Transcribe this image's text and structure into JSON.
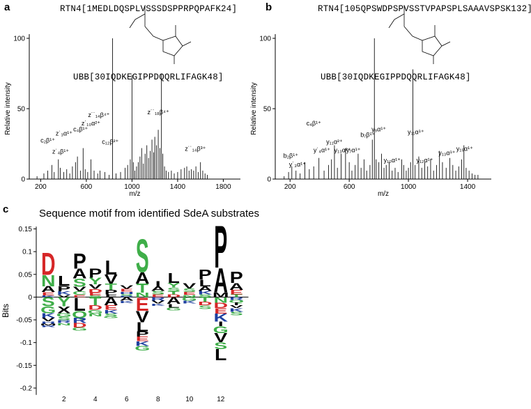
{
  "panels": {
    "a": "a",
    "b": "b",
    "c": "c"
  },
  "chart_data": [
    {
      "panel": "a",
      "type": "bar",
      "sequence_top": "RTN4[1MEDLDQSPLVSSSDSPPRPQPAFK24]",
      "sequence_bottom": "UBB[30IQDKEGIPPDQQRLIFAGK48]",
      "xlabel": "m/z",
      "ylabel": "Relative intensity",
      "xlim": [
        100,
        1950
      ],
      "ylim": [
        0,
        100
      ],
      "xticks": [
        200,
        600,
        1000,
        1400,
        1800
      ],
      "yticks": [
        0,
        50,
        100
      ],
      "peaks": [
        [
          168,
          2
        ],
        [
          228,
          4
        ],
        [
          262,
          6
        ],
        [
          298,
          10
        ],
        [
          318,
          5
        ],
        [
          355,
          14
        ],
        [
          372,
          8
        ],
        [
          402,
          5
        ],
        [
          428,
          7
        ],
        [
          455,
          4
        ],
        [
          478,
          9
        ],
        [
          505,
          12
        ],
        [
          522,
          16
        ],
        [
          548,
          6
        ],
        [
          572,
          22
        ],
        [
          590,
          7
        ],
        [
          612,
          5
        ],
        [
          640,
          14
        ],
        [
          668,
          6
        ],
        [
          700,
          4
        ],
        [
          720,
          6
        ],
        [
          762,
          5
        ],
        [
          800,
          3
        ],
        [
          830,
          100
        ],
        [
          860,
          4
        ],
        [
          900,
          5
        ],
        [
          940,
          8
        ],
        [
          962,
          10
        ],
        [
          985,
          14
        ],
        [
          1000,
          74
        ],
        [
          1012,
          12
        ],
        [
          1025,
          6
        ],
        [
          1040,
          9
        ],
        [
          1055,
          12
        ],
        [
          1070,
          16
        ],
        [
          1085,
          22
        ],
        [
          1100,
          11
        ],
        [
          1115,
          18
        ],
        [
          1130,
          24
        ],
        [
          1145,
          15
        ],
        [
          1160,
          20
        ],
        [
          1175,
          28
        ],
        [
          1190,
          19
        ],
        [
          1200,
          30
        ],
        [
          1215,
          24
        ],
        [
          1230,
          35
        ],
        [
          1245,
          22
        ],
        [
          1258,
          75
        ],
        [
          1270,
          18
        ],
        [
          1285,
          9
        ],
        [
          1300,
          6
        ],
        [
          1320,
          5
        ],
        [
          1345,
          6
        ],
        [
          1370,
          4
        ],
        [
          1400,
          5
        ],
        [
          1430,
          7
        ],
        [
          1460,
          8
        ],
        [
          1480,
          9
        ],
        [
          1500,
          6
        ],
        [
          1520,
          7
        ],
        [
          1540,
          6
        ],
        [
          1560,
          9
        ],
        [
          1580,
          5
        ],
        [
          1600,
          12
        ],
        [
          1620,
          6
        ],
        [
          1640,
          4
        ],
        [
          1660,
          3
        ]
      ],
      "annotations": [
        {
          "text": "c₂β¹⁺",
          "x": 262,
          "y": 26
        },
        {
          "text": "z˙₄β¹⁺",
          "x": 375,
          "y": 18
        },
        {
          "text": "z˙₃α¹⁺",
          "x": 405,
          "y": 31
        },
        {
          "text": "c₄β¹⁺",
          "x": 550,
          "y": 34
        },
        {
          "text": "z˙₁₀α²⁺",
          "x": 640,
          "y": 38
        },
        {
          "text": "z˙˙₁₄β⁴⁺",
          "x": 710,
          "y": 44
        },
        {
          "text": "c₁₂β²⁺",
          "x": 810,
          "y": 25
        },
        {
          "text": "z˙˙₁₈β⁴⁺",
          "x": 1230,
          "y": 46
        },
        {
          "text": "z˙˙₁₄β³⁺",
          "x": 1555,
          "y": 20
        }
      ]
    },
    {
      "panel": "b",
      "type": "bar",
      "sequence_top": "RTN4[105QPSWDPSPVSSTVPAPSPLSAAAVSPSK132]",
      "sequence_bottom": "UBB[30IQDKEGIPPDQQRLIFAGK48]",
      "xlabel": "m/z",
      "ylabel": "Relative intensity",
      "xlim": [
        100,
        1560
      ],
      "ylim": [
        0,
        100
      ],
      "xticks": [
        200,
        600,
        1000,
        1400
      ],
      "yticks": [
        0,
        50,
        100
      ],
      "peaks": [
        [
          160,
          2
        ],
        [
          190,
          5
        ],
        [
          212,
          9
        ],
        [
          240,
          6
        ],
        [
          268,
          4
        ],
        [
          300,
          12
        ],
        [
          330,
          7
        ],
        [
          360,
          9
        ],
        [
          395,
          15
        ],
        [
          430,
          6
        ],
        [
          460,
          10
        ],
        [
          480,
          14
        ],
        [
          500,
          24
        ],
        [
          520,
          8
        ],
        [
          545,
          18
        ],
        [
          575,
          22
        ],
        [
          600,
          12
        ],
        [
          618,
          6
        ],
        [
          640,
          10
        ],
        [
          660,
          18
        ],
        [
          680,
          8
        ],
        [
          700,
          14
        ],
        [
          718,
          6
        ],
        [
          740,
          10
        ],
        [
          756,
          28
        ],
        [
          770,
          100
        ],
        [
          782,
          14
        ],
        [
          800,
          12
        ],
        [
          818,
          18
        ],
        [
          835,
          8
        ],
        [
          850,
          10
        ],
        [
          870,
          12
        ],
        [
          890,
          6
        ],
        [
          910,
          8
        ],
        [
          930,
          5
        ],
        [
          955,
          14
        ],
        [
          968,
          10
        ],
        [
          985,
          6
        ],
        [
          1000,
          8
        ],
        [
          1015,
          12
        ],
        [
          1030,
          78
        ],
        [
          1045,
          10
        ],
        [
          1070,
          16
        ],
        [
          1090,
          8
        ],
        [
          1110,
          12
        ],
        [
          1130,
          9
        ],
        [
          1150,
          14
        ],
        [
          1170,
          6
        ],
        [
          1190,
          10
        ],
        [
          1210,
          20
        ],
        [
          1230,
          12
        ],
        [
          1255,
          8
        ],
        [
          1280,
          15
        ],
        [
          1300,
          10
        ],
        [
          1320,
          6
        ],
        [
          1340,
          9
        ],
        [
          1360,
          14
        ],
        [
          1375,
          24
        ],
        [
          1390,
          8
        ],
        [
          1410,
          6
        ],
        [
          1430,
          4
        ],
        [
          1450,
          3
        ],
        [
          1470,
          3
        ]
      ],
      "annotations": [
        {
          "text": "b₂β¹⁺",
          "x": 205,
          "y": 15
        },
        {
          "text": "y˙₃α¹⁺",
          "x": 250,
          "y": 9
        },
        {
          "text": "c₄β¹⁺",
          "x": 360,
          "y": 38
        },
        {
          "text": "y˙₄α¹⁺",
          "x": 415,
          "y": 19
        },
        {
          "text": "y₁₁α²⁺",
          "x": 500,
          "y": 25
        },
        {
          "text": "y₁₃α²⁺",
          "x": 555,
          "y": 19
        },
        {
          "text": "y₇α¹⁺",
          "x": 628,
          "y": 19
        },
        {
          "text": "b₇β¹⁺",
          "x": 725,
          "y": 30
        },
        {
          "text": "y₉α¹⁺",
          "x": 800,
          "y": 34
        },
        {
          "text": "y₁₀α¹⁺",
          "x": 890,
          "y": 12
        },
        {
          "text": "y₁₁α¹⁺",
          "x": 1050,
          "y": 32
        },
        {
          "text": "y₁₂α¹⁺",
          "x": 1110,
          "y": 12
        },
        {
          "text": "y₁₃α¹⁺",
          "x": 1260,
          "y": 17
        },
        {
          "text": "y₁₅α¹⁺",
          "x": 1380,
          "y": 20
        }
      ]
    },
    {
      "panel": "c",
      "type": "sequence-logo",
      "title": "Sequence motif from identified SdeA substrates",
      "ylabel": "Bits",
      "ylim": [
        -0.22,
        0.16
      ],
      "yticks": [
        0.15,
        0.1,
        0.05,
        0,
        -0.05,
        -0.1,
        -0.15,
        -0.2
      ],
      "xticks": [
        2,
        4,
        6,
        8,
        10,
        12
      ],
      "positions": [
        {
          "pos": 1,
          "up": [
            [
              "D",
              0.05
            ],
            [
              "N",
              0.025
            ],
            [
              "A",
              0.013
            ],
            [
              "E",
              0.007
            ],
            [
              "K",
              0.004
            ]
          ],
          "down": [
            [
              "S",
              0.02
            ],
            [
              "G",
              0.015
            ],
            [
              "K",
              0.01
            ],
            [
              "V",
              0.008
            ],
            [
              "H",
              0.005
            ],
            [
              "M",
              0.004
            ],
            [
              "R",
              0.004
            ]
          ]
        },
        {
          "pos": 2,
          "up": [
            [
              "L",
              0.022
            ],
            [
              "P",
              0.012
            ],
            [
              "K",
              0.008
            ],
            [
              "V",
              0.005
            ]
          ],
          "down": [
            [
              "Y",
              0.02
            ],
            [
              "X",
              0.015
            ],
            [
              "G",
              0.008
            ],
            [
              "S",
              0.008
            ],
            [
              "R",
              0.006
            ],
            [
              "N",
              0.005
            ]
          ]
        },
        {
          "pos": 3,
          "up": [
            [
              "P",
              0.035
            ],
            [
              "A",
              0.022
            ],
            [
              "S",
              0.018
            ],
            [
              "V",
              0.01
            ],
            [
              "C",
              0.008
            ],
            [
              "E",
              0.005
            ]
          ],
          "down": [
            [
              "L",
              0.03
            ],
            [
              "Q",
              0.015
            ],
            [
              "R",
              0.012
            ],
            [
              "D",
              0.01
            ],
            [
              "G",
              0.007
            ]
          ]
        },
        {
          "pos": 4,
          "up": [
            [
              "P",
              0.02
            ],
            [
              "Y",
              0.015
            ],
            [
              "V",
              0.01
            ],
            [
              "D",
              0.008
            ],
            [
              "E",
              0.006
            ],
            [
              "S",
              0.004
            ]
          ],
          "down": [
            [
              "T",
              0.018
            ],
            [
              "D",
              0.01
            ],
            [
              "G",
              0.008
            ],
            [
              "N",
              0.006
            ]
          ]
        },
        {
          "pos": 5,
          "up": [
            [
              "L",
              0.032
            ],
            [
              "V",
              0.02
            ],
            [
              "T",
              0.014
            ],
            [
              "P",
              0.01
            ],
            [
              "F",
              0.006
            ]
          ],
          "down": [
            [
              "A",
              0.018
            ],
            [
              "E",
              0.01
            ],
            [
              "K",
              0.008
            ],
            [
              "S",
              0.006
            ],
            [
              "G",
              0.004
            ]
          ]
        },
        {
          "pos": 6,
          "up": [
            [
              "V",
              0.008
            ],
            [
              "E",
              0.006
            ],
            [
              "H",
              0.005
            ],
            [
              "S",
              0.004
            ],
            [
              "R",
              0.003
            ]
          ],
          "down": [
            [
              "A",
              0.008
            ],
            [
              "K",
              0.005
            ]
          ]
        },
        {
          "pos": 7,
          "up": [
            [
              "S",
              0.075
            ],
            [
              "A",
              0.025
            ],
            [
              "T",
              0.02
            ],
            [
              "N",
              0.01
            ]
          ],
          "down": [
            [
              "E",
              0.03
            ],
            [
              "V",
              0.025
            ],
            [
              "L",
              0.02
            ],
            [
              "P",
              0.012
            ],
            [
              "E",
              0.01
            ],
            [
              "K",
              0.01
            ],
            [
              "G",
              0.01
            ]
          ]
        },
        {
          "pos": 8,
          "up": [
            [
              "I",
              0.012
            ],
            [
              "A",
              0.01
            ],
            [
              "S",
              0.008
            ],
            [
              "E",
              0.006
            ]
          ],
          "down": [
            [
              "R",
              0.008
            ],
            [
              "V",
              0.006
            ],
            [
              "K",
              0.005
            ]
          ]
        },
        {
          "pos": 9,
          "up": [
            [
              "L",
              0.022
            ],
            [
              "Y",
              0.01
            ],
            [
              "S",
              0.008
            ],
            [
              "T",
              0.007
            ],
            [
              "D",
              0.006
            ]
          ],
          "down": [
            [
              "A",
              0.015
            ],
            [
              "L",
              0.008
            ],
            [
              "G",
              0.006
            ]
          ]
        },
        {
          "pos": 10,
          "up": [
            [
              "V",
              0.012
            ],
            [
              "S",
              0.008
            ],
            [
              "E",
              0.006
            ],
            [
              "N",
              0.005
            ]
          ],
          "down": [
            [
              "G",
              0.008
            ],
            [
              "K",
              0.006
            ]
          ]
        },
        {
          "pos": 11,
          "up": [
            [
              "P",
              0.022
            ],
            [
              "L",
              0.015
            ],
            [
              "A",
              0.01
            ],
            [
              "K",
              0.008
            ],
            [
              "S",
              0.006
            ]
          ],
          "down": [
            [
              "T",
              0.01
            ],
            [
              "D",
              0.008
            ],
            [
              "S",
              0.008
            ]
          ]
        },
        {
          "pos": 12,
          "up": [
            [
              "P",
              0.095
            ],
            [
              "A",
              0.055
            ],
            [
              "M",
              0.01
            ]
          ],
          "down": [
            [
              "N",
              0.012
            ],
            [
              "D",
              0.012
            ],
            [
              "E",
              0.012
            ],
            [
              "K",
              0.018
            ],
            [
              "I",
              0.01
            ],
            [
              "G",
              0.015
            ],
            [
              "V",
              0.02
            ],
            [
              "S",
              0.015
            ],
            [
              "L",
              0.025
            ]
          ]
        },
        {
          "pos": 13,
          "up": [
            [
              "P",
              0.025
            ],
            [
              "A",
              0.015
            ],
            [
              "E",
              0.01
            ],
            [
              "T",
              0.006
            ]
          ],
          "down": [
            [
              "R",
              0.006
            ],
            [
              "Q",
              0.006
            ],
            [
              "I",
              0.006
            ],
            [
              "V",
              0.006
            ],
            [
              "K",
              0.008
            ],
            [
              "S",
              0.008
            ]
          ]
        }
      ],
      "colors": {
        "acidic": "#d62728",
        "basic": "#2041a0",
        "polar": "#3fae49",
        "hydrophobic": "#000000"
      }
    }
  ]
}
